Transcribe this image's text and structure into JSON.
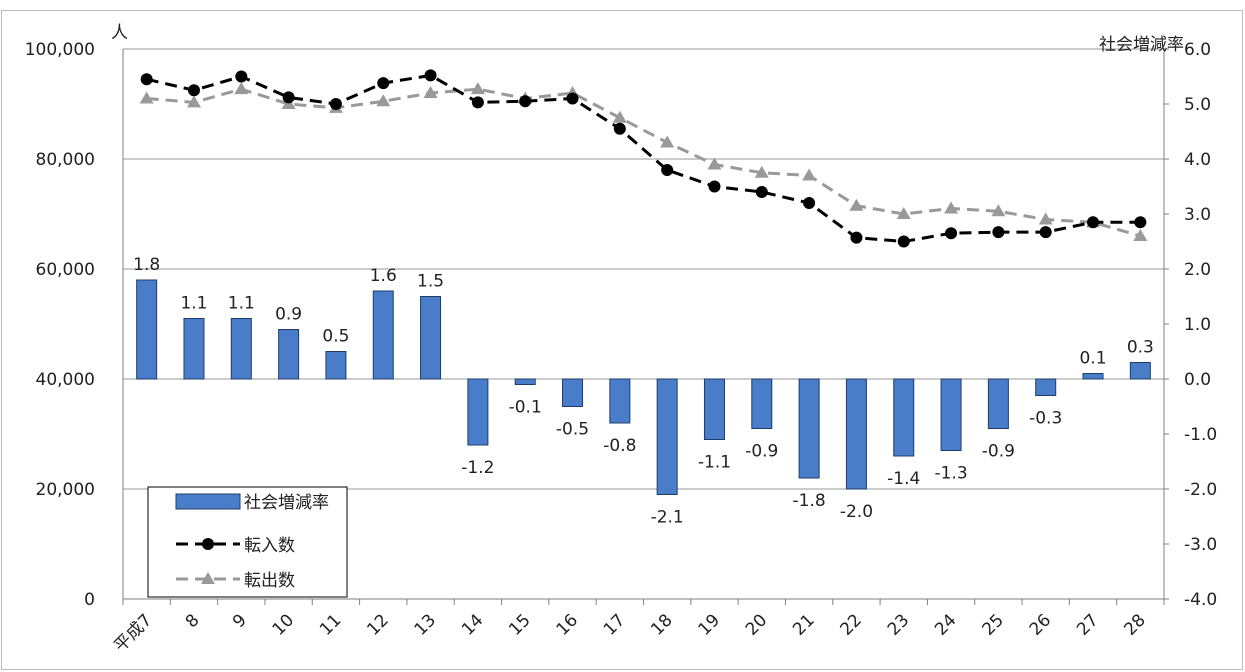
{
  "chart_data": {
    "type": "bar",
    "categories": [
      "平成7",
      "8",
      "9",
      "10",
      "11",
      "12",
      "13",
      "14",
      "15",
      "16",
      "17",
      "18",
      "19",
      "20",
      "21",
      "22",
      "23",
      "24",
      "25",
      "26",
      "27",
      "28"
    ],
    "series": [
      {
        "name": "社会増減率",
        "axis": "right",
        "type": "bar",
        "color": "#4a7dc9",
        "values": [
          1.8,
          1.1,
          1.1,
          0.9,
          0.5,
          1.6,
          1.5,
          -1.2,
          -0.1,
          -0.5,
          -0.8,
          -2.1,
          -1.1,
          -0.9,
          -1.8,
          -2.0,
          -1.4,
          -1.3,
          -0.9,
          -0.3,
          0.1,
          0.3
        ],
        "labels": [
          "1.8",
          "1.1",
          "1.1",
          "0.9",
          "0.5",
          "1.6",
          "1.5",
          "-1.2",
          "-0.1",
          "-0.5",
          "-0.8",
          "-2.1",
          "-1.1",
          "-0.9",
          "-1.8",
          "-2.0",
          "-1.4",
          "-1.3",
          "-0.9",
          "-0.3",
          "0.1",
          "0.3"
        ]
      },
      {
        "name": "転入数",
        "axis": "left",
        "type": "line",
        "color": "#000000",
        "marker": "circle",
        "values": [
          94500,
          92500,
          95000,
          91200,
          90000,
          93800,
          95200,
          90300,
          90500,
          91000,
          85500,
          78000,
          75000,
          74000,
          72000,
          65700,
          65000,
          66500,
          66700,
          66700,
          68500,
          68500
        ]
      },
      {
        "name": "転出数",
        "axis": "left",
        "type": "line",
        "color": "#999999",
        "marker": "triangle",
        "values": [
          91000,
          90300,
          92700,
          90000,
          89300,
          90500,
          92000,
          92700,
          91000,
          92000,
          87500,
          83000,
          79000,
          77500,
          77000,
          71500,
          70000,
          71000,
          70500,
          69000,
          68500,
          66000
        ]
      }
    ],
    "left_axis": {
      "unit": "人",
      "ylim": [
        0,
        100000
      ],
      "ticks": [
        "0",
        "20,000",
        "40,000",
        "60,000",
        "80,000",
        "100,000"
      ]
    },
    "right_axis": {
      "unit": "社会増減率",
      "ylim": [
        -4.0,
        6.0
      ],
      "ticks": [
        "-4.0",
        "-3.0",
        "-2.0",
        "-1.0",
        "0.0",
        "1.0",
        "2.0",
        "3.0",
        "4.0",
        "5.0",
        "6.0"
      ]
    },
    "grid": true,
    "legend_position": "bottom-left",
    "legend": [
      "社会増減率",
      "転入数",
      "転出数"
    ]
  }
}
